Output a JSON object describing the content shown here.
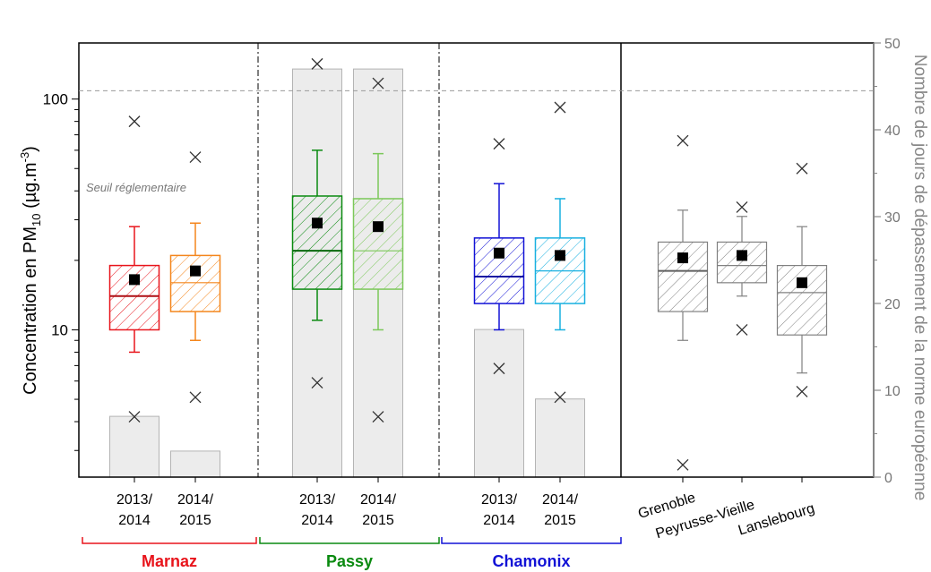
{
  "chart_data": {
    "type": "box",
    "ylabel_prefix": "Concentration en PM",
    "ylabel_sub": "10",
    "ylabel_units_prefix": " (µg.m",
    "ylabel_units_sup": "-3",
    "ylabel_units_suffix": ")",
    "y2label": "Nombre de jours de dépassement de la norme européenne",
    "yscale": "log",
    "ylim": [
      2.3,
      175
    ],
    "y2lim": [
      0,
      50
    ],
    "y_ticks": [
      {
        "value": 100,
        "label": "100"
      },
      {
        "value": 10,
        "label": "10"
      }
    ],
    "y2_ticks": [
      {
        "value": 0,
        "label": "0"
      },
      {
        "value": 10,
        "label": "10"
      },
      {
        "value": 20,
        "label": "20"
      },
      {
        "value": 30,
        "label": "30"
      },
      {
        "value": 40,
        "label": "40"
      },
      {
        "value": 50,
        "label": "50"
      }
    ],
    "threshold": {
      "value": 44.5,
      "label": "Seuil réglementaire"
    },
    "groups": [
      {
        "name": "Marnaz",
        "color": "#e8141b"
      },
      {
        "name": "Passy",
        "color": "#0a8a10"
      },
      {
        "name": "Chamonix",
        "color": "#1212d6"
      }
    ],
    "stations": [
      {
        "label_line1": "2013/",
        "label_line2": "2014",
        "group": 0,
        "color": "#e8141b",
        "dark_median": true,
        "whisker_low": 8,
        "q1": 10,
        "median": 14,
        "q3": 19,
        "whisker_high": 28,
        "mean": 16.5,
        "min": 4.2,
        "max": 80,
        "exceed_days": 7
      },
      {
        "label_line1": "2014/",
        "label_line2": "2015",
        "group": 0,
        "color": "#f4861c",
        "dark_median": false,
        "whisker_low": 9,
        "q1": 12,
        "median": 16,
        "q3": 21,
        "whisker_high": 29,
        "mean": 18,
        "min": 5.1,
        "max": 56,
        "exceed_days": 3
      },
      {
        "label_line1": "2013/",
        "label_line2": "2014",
        "group": 1,
        "color": "#0a8a10",
        "dark_median": true,
        "whisker_low": 11,
        "q1": 15,
        "median": 22,
        "q3": 38,
        "whisker_high": 60,
        "mean": 29,
        "min": 5.9,
        "max": 142,
        "exceed_days": 47
      },
      {
        "label_line1": "2014/",
        "label_line2": "2015",
        "group": 1,
        "color": "#7cc85a",
        "dark_median": false,
        "whisker_low": 10,
        "q1": 15,
        "median": 22,
        "q3": 37,
        "whisker_high": 58,
        "mean": 28,
        "min": 4.2,
        "max": 117,
        "exceed_days": 47
      },
      {
        "label_line1": "2013/",
        "label_line2": "2014",
        "group": 2,
        "color": "#1212d6",
        "dark_median": true,
        "whisker_low": 10,
        "q1": 13,
        "median": 17,
        "q3": 25,
        "whisker_high": 43,
        "mean": 21.5,
        "min": 6.8,
        "max": 64,
        "exceed_days": 17
      },
      {
        "label_line1": "2014/",
        "label_line2": "2015",
        "group": 2,
        "color": "#19b0e0",
        "dark_median": false,
        "whisker_low": 10,
        "q1": 13,
        "median": 18,
        "q3": 25,
        "whisker_high": 37,
        "mean": 21,
        "min": 5.1,
        "max": 92,
        "exceed_days": 9
      },
      {
        "label_line1": "Grenoble",
        "label_line2": "",
        "group": -1,
        "color": "#808080",
        "dark_median": true,
        "whisker_low": 9,
        "q1": 12,
        "median": 18,
        "q3": 24,
        "whisker_high": 33,
        "mean": 20.5,
        "min": 2.6,
        "max": 66,
        "exceed_days": null
      },
      {
        "label_line1": "Peyrusse-Vieille",
        "label_line2": "",
        "group": -1,
        "color": "#808080",
        "dark_median": false,
        "whisker_low": 14,
        "q1": 16,
        "median": 19,
        "q3": 24,
        "whisker_high": 31,
        "mean": 21,
        "min": 10,
        "max": 34,
        "exceed_days": null
      },
      {
        "label_line1": "Lanslebourg",
        "label_line2": "",
        "group": -1,
        "color": "#808080",
        "dark_median": false,
        "whisker_low": 6.5,
        "q1": 9.5,
        "median": 14.5,
        "q3": 19,
        "whisker_high": 28,
        "mean": 16,
        "min": 5.4,
        "max": 50,
        "exceed_days": null
      }
    ]
  }
}
